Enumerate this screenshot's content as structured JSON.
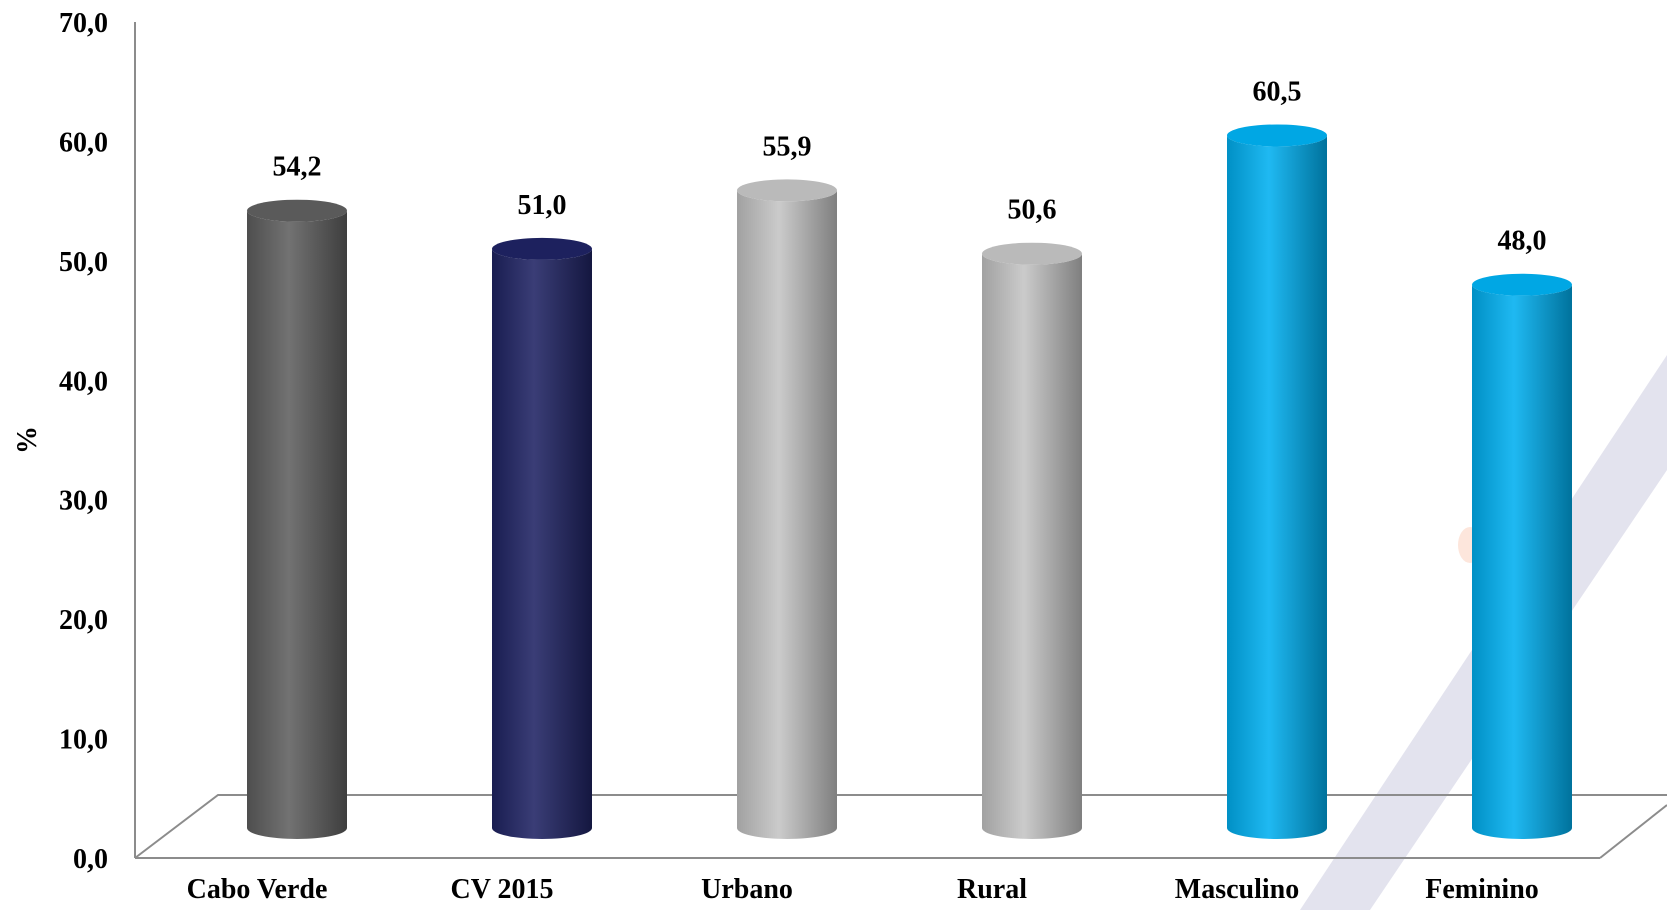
{
  "chart_data": {
    "type": "bar",
    "title": "",
    "xlabel": "",
    "ylabel": "%",
    "ylim": [
      0,
      70
    ],
    "yticks": [
      "0,0",
      "10,0",
      "20,0",
      "30,0",
      "40,0",
      "50,0",
      "60,0",
      "70,0"
    ],
    "ytick_values": [
      0,
      10,
      20,
      30,
      40,
      50,
      60,
      70
    ],
    "grid": false,
    "legend": "none",
    "categories": [
      "Cabo Verde",
      "CV 2015",
      "Urbano",
      "Rural",
      "Masculino",
      "Feminino"
    ],
    "values": [
      54.2,
      51.0,
      55.9,
      50.6,
      60.5,
      48.0
    ],
    "value_labels": [
      "54,2",
      "51,0",
      "55,9",
      "50,6",
      "60,5",
      "48,0"
    ],
    "colors": [
      "#5f5f5f",
      "#1f2363",
      "#c4c4c4",
      "#c4c4c4",
      "#00b0f0",
      "#00b0f0"
    ]
  }
}
